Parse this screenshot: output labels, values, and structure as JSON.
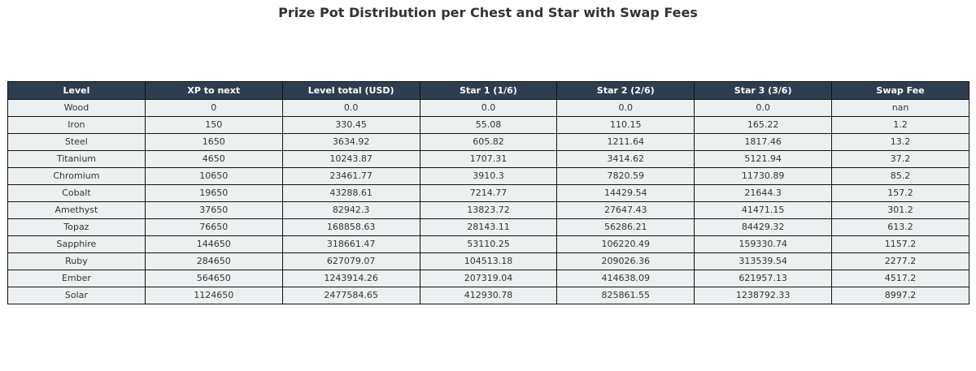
{
  "chart_data": {
    "type": "table",
    "title": "Prize Pot Distribution per Chest and Star with Swap Fees",
    "columns": [
      "Level",
      "XP to next",
      "Level total (USD)",
      "Star 1 (1/6)",
      "Star 2 (2/6)",
      "Star 3 (3/6)",
      "Swap Fee"
    ],
    "rows": [
      [
        "Wood",
        "0",
        "0.0",
        "0.0",
        "0.0",
        "0.0",
        "nan"
      ],
      [
        "Iron",
        "150",
        "330.45",
        "55.08",
        "110.15",
        "165.22",
        "1.2"
      ],
      [
        "Steel",
        "1650",
        "3634.92",
        "605.82",
        "1211.64",
        "1817.46",
        "13.2"
      ],
      [
        "Titanium",
        "4650",
        "10243.87",
        "1707.31",
        "3414.62",
        "5121.94",
        "37.2"
      ],
      [
        "Chromium",
        "10650",
        "23461.77",
        "3910.3",
        "7820.59",
        "11730.89",
        "85.2"
      ],
      [
        "Cobalt",
        "19650",
        "43288.61",
        "7214.77",
        "14429.54",
        "21644.3",
        "157.2"
      ],
      [
        "Amethyst",
        "37650",
        "82942.3",
        "13823.72",
        "27647.43",
        "41471.15",
        "301.2"
      ],
      [
        "Topaz",
        "76650",
        "168858.63",
        "28143.11",
        "56286.21",
        "84429.32",
        "613.2"
      ],
      [
        "Sapphire",
        "144650",
        "318661.47",
        "53110.25",
        "106220.49",
        "159330.74",
        "1157.2"
      ],
      [
        "Ruby",
        "284650",
        "627079.07",
        "104513.18",
        "209026.36",
        "313539.54",
        "2277.2"
      ],
      [
        "Ember",
        "564650",
        "1243914.26",
        "207319.04",
        "414638.09",
        "621957.13",
        "4517.2"
      ],
      [
        "Solar",
        "1124650",
        "2477584.65",
        "412930.78",
        "825861.55",
        "1238792.33",
        "8997.2"
      ]
    ]
  },
  "colors": {
    "header_bg": "#2e3e51",
    "header_text": "#ffffff",
    "cell_bg": "#ecf0f1",
    "cell_text": "#333333",
    "border": "#111111",
    "title_text": "#333333"
  }
}
